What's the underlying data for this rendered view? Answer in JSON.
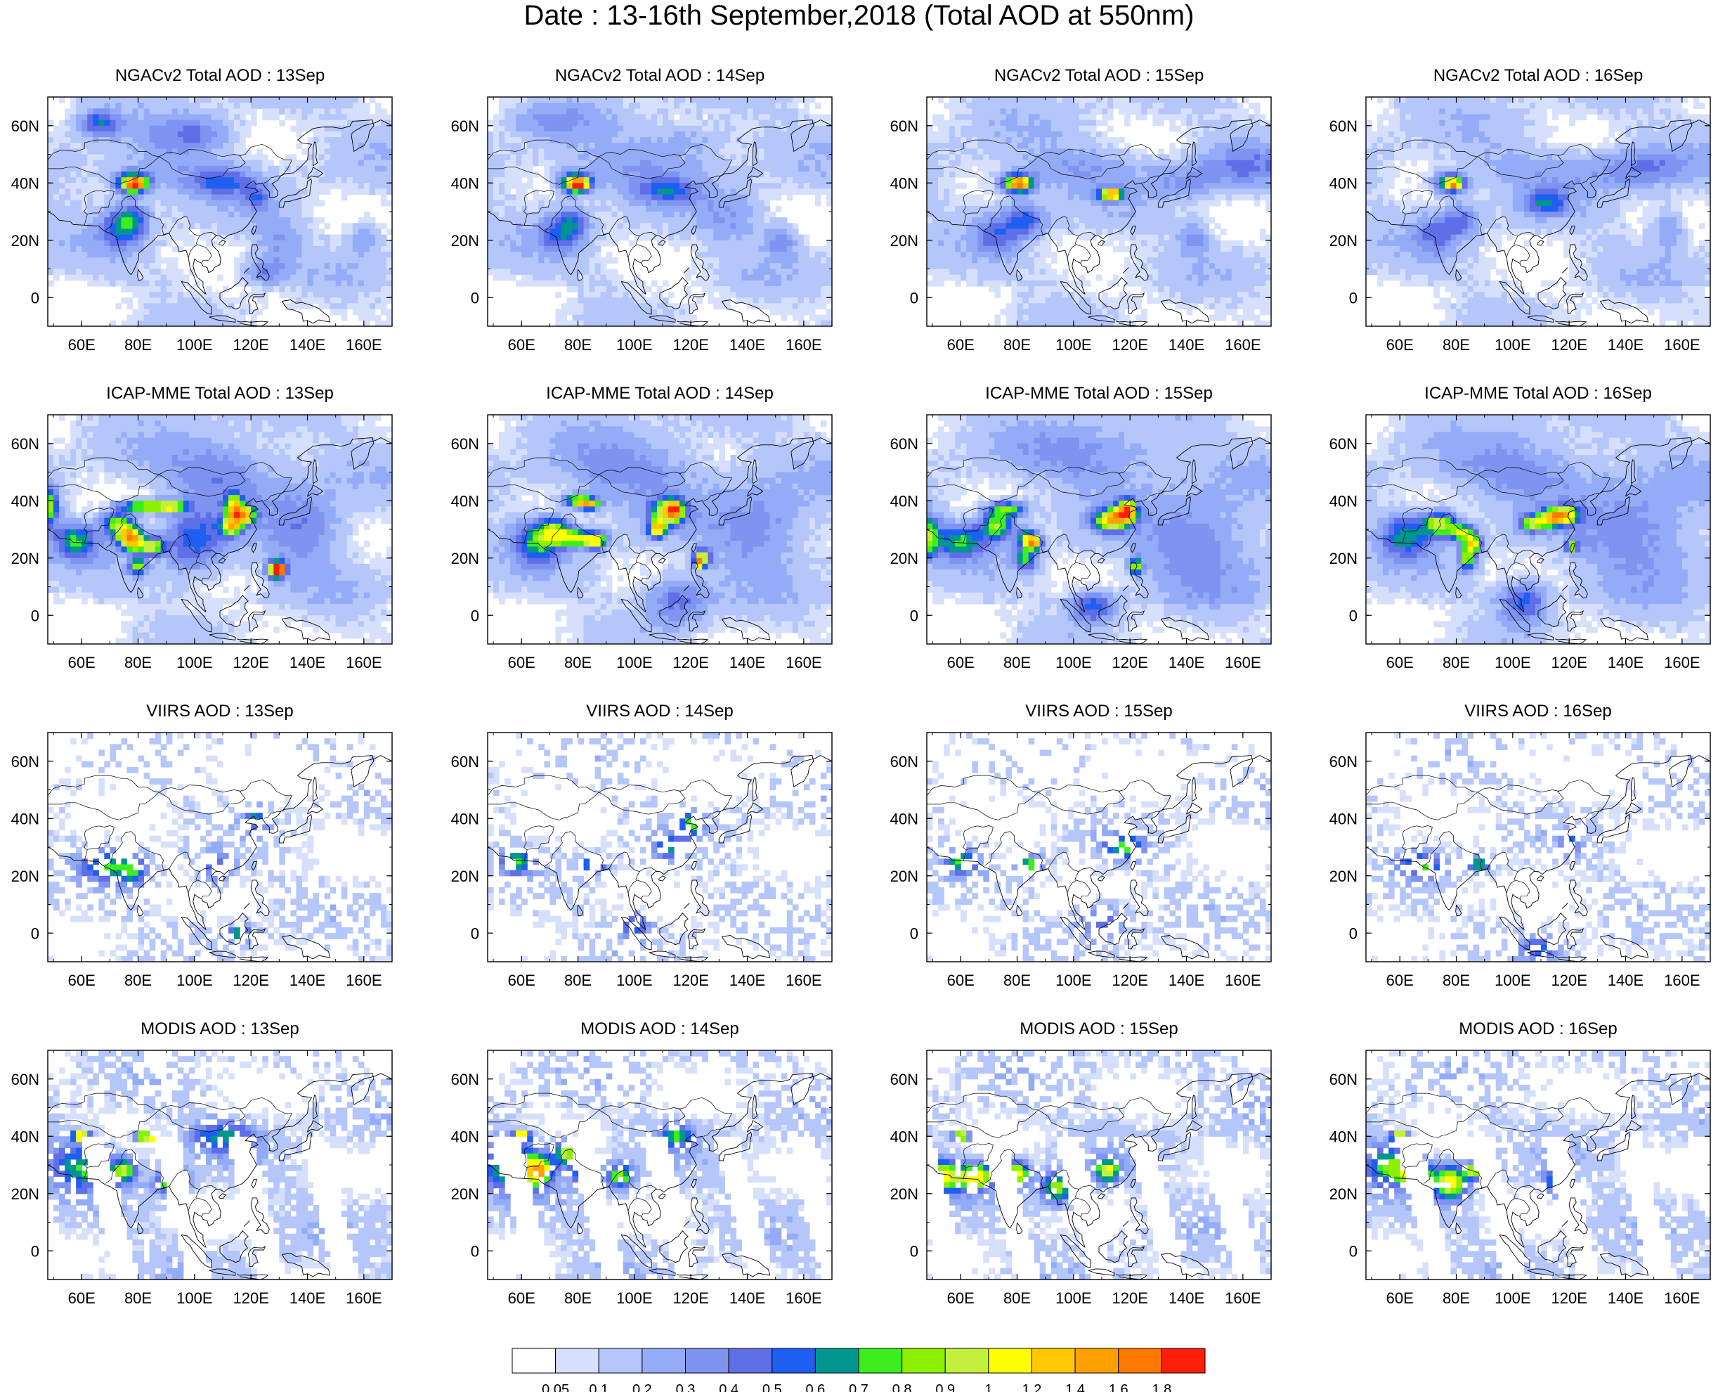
{
  "title": "Date : 13-16th September,2018 (Total AOD at 550nm)",
  "days": [
    "13Sep",
    "14Sep",
    "15Sep",
    "16Sep"
  ],
  "rows": [
    {
      "product": "NGACv2",
      "titles": [
        "NGACv2 Total AOD : 13Sep",
        "NGACv2 Total AOD : 14Sep",
        "NGACv2 Total AOD : 15Sep",
        "NGACv2 Total AOD : 16Sep"
      ]
    },
    {
      "product": "ICAP-MME",
      "titles": [
        "ICAP-MME Total AOD : 13Sep",
        "ICAP-MME Total AOD : 14Sep",
        "ICAP-MME Total AOD : 15Sep",
        "ICAP-MME Total AOD : 16Sep"
      ]
    },
    {
      "product": "VIIRS",
      "titles": [
        "VIIRS AOD : 13Sep",
        "VIIRS AOD : 14Sep",
        "VIIRS AOD : 15Sep",
        "VIIRS AOD : 16Sep"
      ]
    },
    {
      "product": "MODIS",
      "titles": [
        "MODIS AOD : 13Sep",
        "MODIS AOD : 14Sep",
        "MODIS AOD : 15Sep",
        "MODIS AOD : 16Sep"
      ]
    }
  ],
  "map_extent": {
    "lon": [
      48,
      170
    ],
    "lat": [
      -10,
      70
    ]
  },
  "lon_ticks": [
    60,
    80,
    100,
    120,
    140,
    160
  ],
  "lon_tick_labels": [
    "60E",
    "80E",
    "100E",
    "120E",
    "140E",
    "160E"
  ],
  "lat_ticks": [
    0,
    20,
    40,
    60
  ],
  "lat_tick_labels": [
    "0",
    "20N",
    "40N",
    "60N"
  ],
  "colorbar": {
    "colors": [
      "#ffffff",
      "#d6e0fc",
      "#b4c6fa",
      "#94acf7",
      "#7f94f0",
      "#5f6fe8",
      "#1e5ef0",
      "#00968e",
      "#3cee1e",
      "#8cf000",
      "#c4f03c",
      "#ffff00",
      "#ffc800",
      "#ffa000",
      "#ff7800",
      "#ff1e0a"
    ],
    "labels": [
      "0.05",
      "0.1",
      "0.2",
      "0.3",
      "0.4",
      "0.5",
      "0.6",
      "0.7",
      "0.8",
      "0.9",
      "1",
      "1.2",
      "1.4",
      "1.6",
      "1.8"
    ]
  }
}
